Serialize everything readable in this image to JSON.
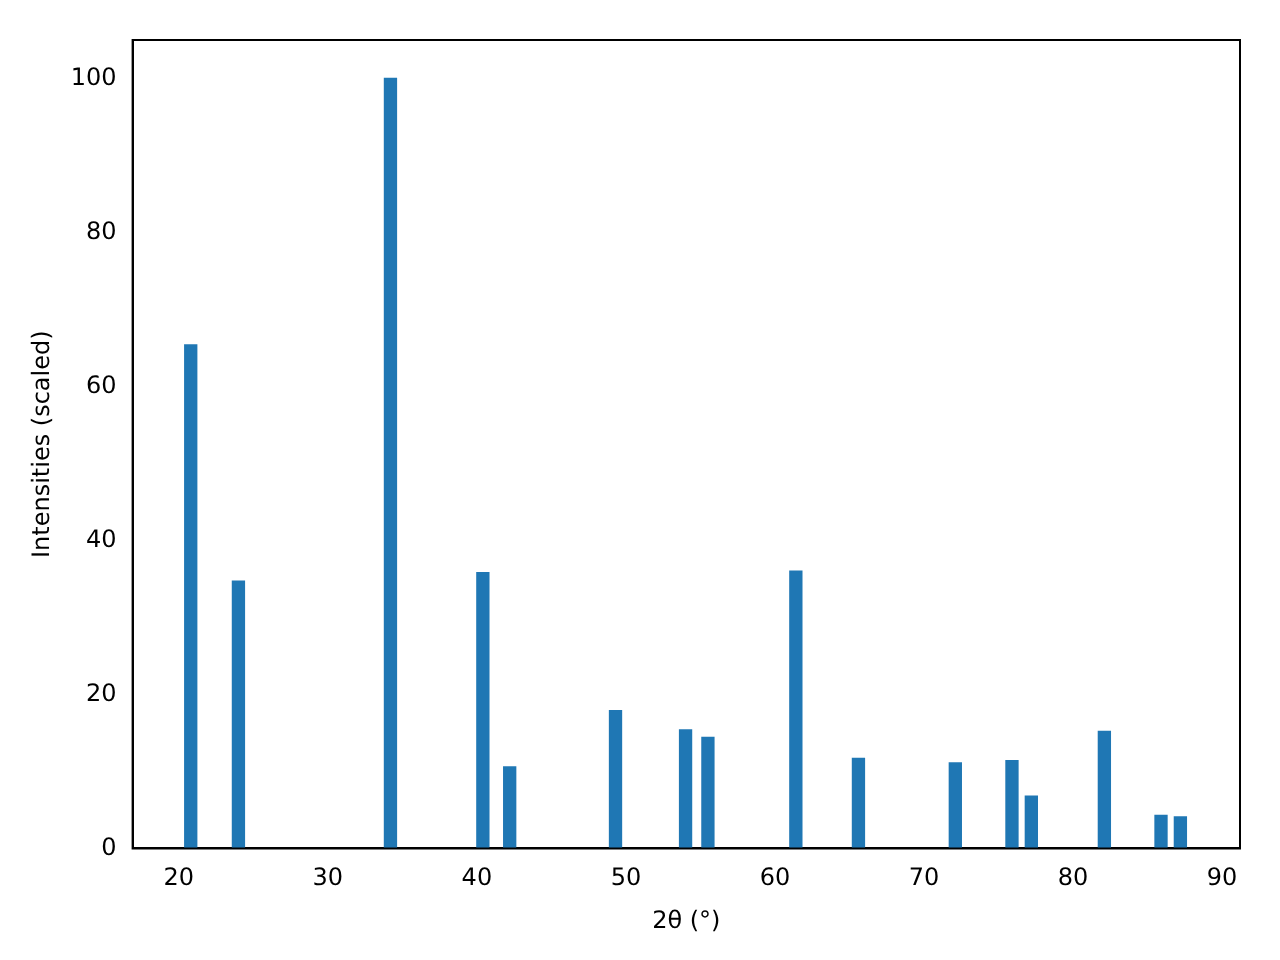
{
  "chart_data": {
    "type": "bar",
    "xlabel": "2θ (°)",
    "ylabel": "Intensities (scaled)",
    "x": [
      20.8,
      24.0,
      34.2,
      40.4,
      42.2,
      49.3,
      54.0,
      55.5,
      61.4,
      65.6,
      72.1,
      75.9,
      77.2,
      82.1,
      85.9,
      87.2
    ],
    "values": [
      65.4,
      34.7,
      100,
      35.8,
      10.6,
      17.9,
      15.4,
      14.4,
      36.0,
      11.7,
      11.1,
      11.4,
      6.8,
      15.2,
      4.3,
      4.1
    ],
    "color": "#1f77b4",
    "xlim": [
      16.9,
      91.2
    ],
    "xticks": [
      20,
      30,
      40,
      50,
      60,
      70,
      80,
      90
    ],
    "ylim": [
      0,
      105
    ],
    "yticks": [
      0,
      20,
      40,
      60,
      80,
      100
    ],
    "grid": false,
    "legend": false
  }
}
